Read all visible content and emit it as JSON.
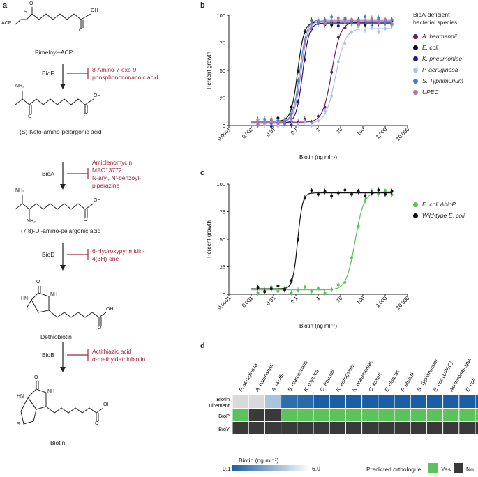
{
  "panel_a": {
    "letter": "a",
    "molecules": {
      "pimeloyl": "Pimeloyl–ACP",
      "kapa": "(S)-Keto-amino-pelargonic acid",
      "dapa": "(7,8)-Di-amino-pelargonic acid",
      "dethiobiotin": "Dethiobiotin",
      "biotin": "Biotin"
    },
    "atoms": {
      "acp": "ACP",
      "s": "S",
      "oh": "OH",
      "o": "O",
      "nh2": "NH₂",
      "hn": "HN",
      "nh": "NH"
    },
    "enzymes": [
      "BioF",
      "BioA",
      "BioD",
      "BioB"
    ],
    "inhibitors": {
      "biof": [
        "8-Amino-7-oxo-9-",
        "phosphonononanoic acid"
      ],
      "bioa": [
        "Amiclenomycin",
        "MAC13772",
        "N-aryl, N′-benzoyl-",
        "piperazine"
      ],
      "biod": [
        "6-Hydroxypyrimidin-",
        "4(3H)-one"
      ],
      "biob": [
        "Actithiazic acid",
        "α-methyldethiobiotin"
      ]
    },
    "colors": {
      "inhibitor": "#a0243d"
    }
  },
  "panel_b": {
    "letter": "b",
    "legend_title": [
      "BioA-deficient",
      "bacterial species"
    ]
  },
  "panel_c": {
    "letter": "c"
  },
  "panel_d": {
    "letter": "d",
    "species": [
      "P. aeruginosa",
      "A. baumannii",
      "A. lwoffii",
      "S. marcescens",
      "K. oxytoca",
      "C. freundii",
      "K. aerogenes",
      "K. pneumoniae",
      "C. koseri",
      "E. cloacae",
      "P. stuartii",
      "S. Typhimurium",
      "E. coli (UPEC)",
      "Aeromonas spp.",
      "E. coli",
      "P. rettgeri"
    ],
    "rows": [
      "Biotin requirement",
      "BioP",
      "BioY"
    ],
    "biotin_requirement_colors": [
      "#d9d9d9",
      "#d9d9d9",
      "#a9c4df",
      "#2d6fad",
      "#2a6aab",
      "#1b5ea6",
      "#1b5ea6",
      "#1b5ea6",
      "#1b5ea6",
      "#1b5ea6",
      "#1b5ea6",
      "#1b5ea6",
      "#1b5ea6",
      "#1b5ea6",
      "#1b5ea6",
      "#1b5ea6"
    ],
    "biop": [
      1,
      0,
      0,
      1,
      1,
      1,
      1,
      1,
      1,
      1,
      1,
      1,
      1,
      1,
      1,
      1
    ],
    "bioy": [
      0,
      0,
      0,
      0,
      0,
      0,
      0,
      0,
      0,
      0,
      0,
      0,
      0,
      0,
      0,
      0
    ],
    "colorbar_label": "Biotin (ng ml⁻¹)",
    "colorbar_min": "0.1",
    "colorbar_max": "6.0",
    "orthologue_label": "Predicted orthologue",
    "yes": "Yes",
    "no": "No",
    "colors": {
      "yes": "#5cc25c",
      "no": "#3a3a3a"
    }
  },
  "chart_data": [
    {
      "type": "scatter",
      "panel": "b",
      "xlabel": "Biotin (ng ml⁻¹)",
      "ylabel": "Percent growth",
      "xscale": "log",
      "xlim": [
        0.0001,
        10000
      ],
      "ylim": [
        0,
        100
      ],
      "xticks": [
        0.0001,
        0.001,
        0.01,
        0.1,
        1,
        10,
        100,
        1000,
        10000
      ],
      "xtick_labels": [
        "0.0001",
        "0.001",
        "0.01",
        "0.1",
        "1",
        "10",
        "100",
        "1,000",
        "10,000"
      ],
      "yticks": [
        0,
        25,
        50,
        75,
        100
      ],
      "ytick_labels": [
        "0",
        "25",
        "50",
        "75",
        "100"
      ],
      "legend_position": "right",
      "series": [
        {
          "name": "A. baumannii",
          "color": "#6b1f5e",
          "ec50": 4.0,
          "hill": 2.2,
          "bottom": 3,
          "top": 94
        },
        {
          "name": "E. coli",
          "color": "#111111",
          "ec50": 0.12,
          "hill": 3.0,
          "bottom": 4,
          "top": 94
        },
        {
          "name": "K. pneumoniae",
          "color": "#1a1a8c",
          "ec50": 0.2,
          "hill": 3.0,
          "bottom": 2,
          "top": 93
        },
        {
          "name": "P. aeruginosa",
          "color": "#a9c4ea",
          "ec50": 6.0,
          "hill": 2.0,
          "bottom": 2,
          "top": 88
        },
        {
          "name": "S. Typhimurium",
          "color": "#3d7fe0",
          "ec50": 0.15,
          "hill": 2.8,
          "bottom": 3,
          "top": 96
        },
        {
          "name": "UPEC",
          "color": "#b07aa8",
          "ec50": 0.17,
          "hill": 2.8,
          "bottom": 3,
          "top": 95
        }
      ]
    },
    {
      "type": "scatter",
      "panel": "c",
      "xlabel": "Biotin (ng ml⁻¹)",
      "ylabel": "Percent growth",
      "xscale": "log",
      "xlim": [
        0.0001,
        10000
      ],
      "ylim": [
        0,
        100
      ],
      "xticks": [
        0.0001,
        0.001,
        0.01,
        0.1,
        1,
        10,
        100,
        1000,
        10000
      ],
      "xtick_labels": [
        "0.0001",
        "0.001",
        "0.01",
        "0.1",
        "1",
        "10",
        "100",
        "1,000",
        "10,000"
      ],
      "yticks": [
        0,
        25,
        50,
        75,
        100
      ],
      "ytick_labels": [
        "0",
        "25",
        "50",
        "75",
        "100"
      ],
      "legend_position": "right",
      "series": [
        {
          "name": "E. coli ΔbioP",
          "color": "#5cc25c",
          "ec50": 45,
          "hill": 2.2,
          "bottom": 4,
          "top": 93
        },
        {
          "name": "Wild-type E. coli",
          "color": "#111111",
          "ec50": 0.12,
          "hill": 4.0,
          "bottom": 5,
          "top": 92
        }
      ]
    }
  ]
}
